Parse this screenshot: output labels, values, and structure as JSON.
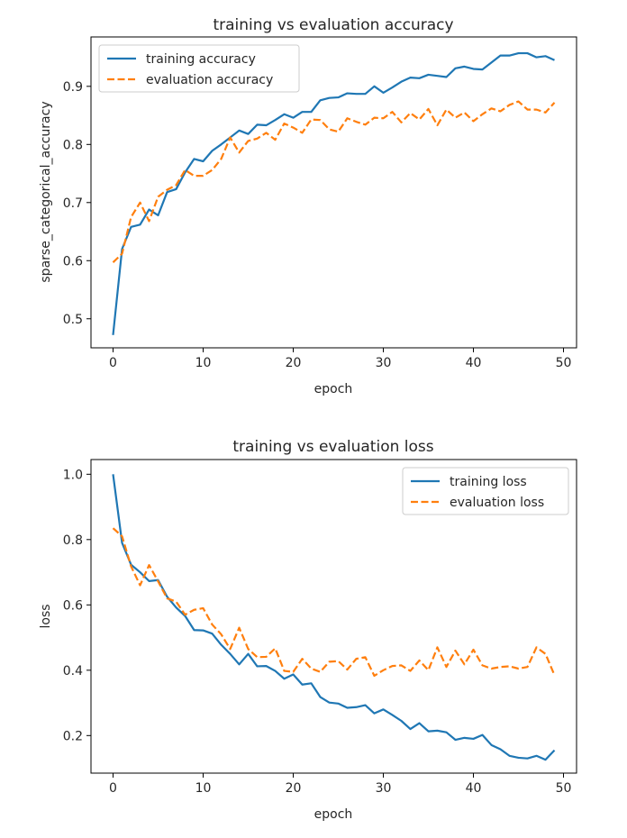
{
  "chart_data": [
    {
      "type": "line",
      "title": "training vs evaluation accuracy",
      "xlabel": "epoch",
      "ylabel": "sparse_categorical_accuracy",
      "xlim": [
        -2.45,
        51.45
      ],
      "ylim": [
        0.45,
        0.985
      ],
      "xticks": [
        0,
        10,
        20,
        30,
        40,
        50
      ],
      "yticks": [
        0.5,
        0.6,
        0.7,
        0.8,
        0.9
      ],
      "ytick_labels": [
        "0.5",
        "0.6",
        "0.7",
        "0.8",
        "0.9"
      ],
      "legend": "upper left",
      "grid": false,
      "x": [
        0,
        1,
        2,
        3,
        4,
        5,
        6,
        7,
        8,
        9,
        10,
        11,
        12,
        13,
        14,
        15,
        16,
        17,
        18,
        19,
        20,
        21,
        22,
        23,
        24,
        25,
        26,
        27,
        28,
        29,
        30,
        31,
        32,
        33,
        34,
        35,
        36,
        37,
        38,
        39,
        40,
        41,
        42,
        43,
        44,
        45,
        46,
        47,
        48,
        49
      ],
      "series": [
        {
          "name": "training accuracy",
          "color": "#1f77b4",
          "style": "solid",
          "values": [
            0.472,
            0.62,
            0.658,
            0.662,
            0.688,
            0.678,
            0.718,
            0.723,
            0.752,
            0.775,
            0.771,
            0.789,
            0.8,
            0.812,
            0.824,
            0.818,
            0.834,
            0.833,
            0.842,
            0.852,
            0.846,
            0.856,
            0.856,
            0.876,
            0.88,
            0.881,
            0.888,
            0.887,
            0.887,
            0.9,
            0.889,
            0.898,
            0.908,
            0.915,
            0.914,
            0.92,
            0.918,
            0.916,
            0.931,
            0.934,
            0.93,
            0.929,
            0.941,
            0.953,
            0.953,
            0.957,
            0.957,
            0.95,
            0.952,
            0.945
          ]
        },
        {
          "name": "evaluation accuracy",
          "color": "#ff7f0e",
          "style": "dashed",
          "values": [
            0.597,
            0.612,
            0.675,
            0.7,
            0.668,
            0.71,
            0.722,
            0.73,
            0.756,
            0.746,
            0.746,
            0.756,
            0.775,
            0.812,
            0.786,
            0.806,
            0.81,
            0.82,
            0.808,
            0.836,
            0.829,
            0.82,
            0.843,
            0.842,
            0.826,
            0.822,
            0.845,
            0.839,
            0.834,
            0.846,
            0.845,
            0.856,
            0.838,
            0.854,
            0.843,
            0.861,
            0.833,
            0.86,
            0.846,
            0.855,
            0.84,
            0.852,
            0.862,
            0.857,
            0.868,
            0.874,
            0.86,
            0.86,
            0.855,
            0.872
          ]
        }
      ]
    },
    {
      "type": "line",
      "title": "training vs evaluation loss",
      "xlabel": "epoch",
      "ylabel": "loss",
      "xlim": [
        -2.45,
        51.45
      ],
      "ylim": [
        0.085,
        1.045
      ],
      "xticks": [
        0,
        10,
        20,
        30,
        40,
        50
      ],
      "yticks": [
        0.2,
        0.4,
        0.6,
        0.8,
        1.0
      ],
      "ytick_labels": [
        "0.2",
        "0.4",
        "0.6",
        "0.8",
        "1.0"
      ],
      "legend": "upper right",
      "grid": false,
      "x": [
        0,
        1,
        2,
        3,
        4,
        5,
        6,
        7,
        8,
        9,
        10,
        11,
        12,
        13,
        14,
        15,
        16,
        17,
        18,
        19,
        20,
        21,
        22,
        23,
        24,
        25,
        26,
        27,
        28,
        29,
        30,
        31,
        32,
        33,
        34,
        35,
        36,
        37,
        38,
        39,
        40,
        41,
        42,
        43,
        44,
        45,
        46,
        47,
        48,
        49
      ],
      "series": [
        {
          "name": "training loss",
          "color": "#1f77b4",
          "style": "solid",
          "values": [
            1.0,
            0.79,
            0.723,
            0.7,
            0.673,
            0.676,
            0.625,
            0.592,
            0.566,
            0.523,
            0.522,
            0.512,
            0.478,
            0.45,
            0.418,
            0.45,
            0.412,
            0.413,
            0.398,
            0.374,
            0.387,
            0.356,
            0.36,
            0.318,
            0.301,
            0.298,
            0.285,
            0.287,
            0.293,
            0.268,
            0.28,
            0.263,
            0.245,
            0.22,
            0.238,
            0.213,
            0.215,
            0.21,
            0.187,
            0.193,
            0.19,
            0.202,
            0.171,
            0.158,
            0.138,
            0.132,
            0.13,
            0.138,
            0.126,
            0.155
          ]
        },
        {
          "name": "evaluation loss",
          "color": "#ff7f0e",
          "style": "dashed",
          "values": [
            0.835,
            0.81,
            0.718,
            0.66,
            0.722,
            0.672,
            0.62,
            0.61,
            0.57,
            0.585,
            0.59,
            0.54,
            0.51,
            0.465,
            0.53,
            0.465,
            0.44,
            0.441,
            0.467,
            0.398,
            0.395,
            0.435,
            0.405,
            0.395,
            0.426,
            0.428,
            0.402,
            0.435,
            0.44,
            0.383,
            0.4,
            0.413,
            0.415,
            0.398,
            0.43,
            0.4,
            0.47,
            0.41,
            0.46,
            0.418,
            0.463,
            0.415,
            0.405,
            0.41,
            0.412,
            0.405,
            0.41,
            0.47,
            0.45,
            0.385
          ]
        }
      ]
    }
  ]
}
